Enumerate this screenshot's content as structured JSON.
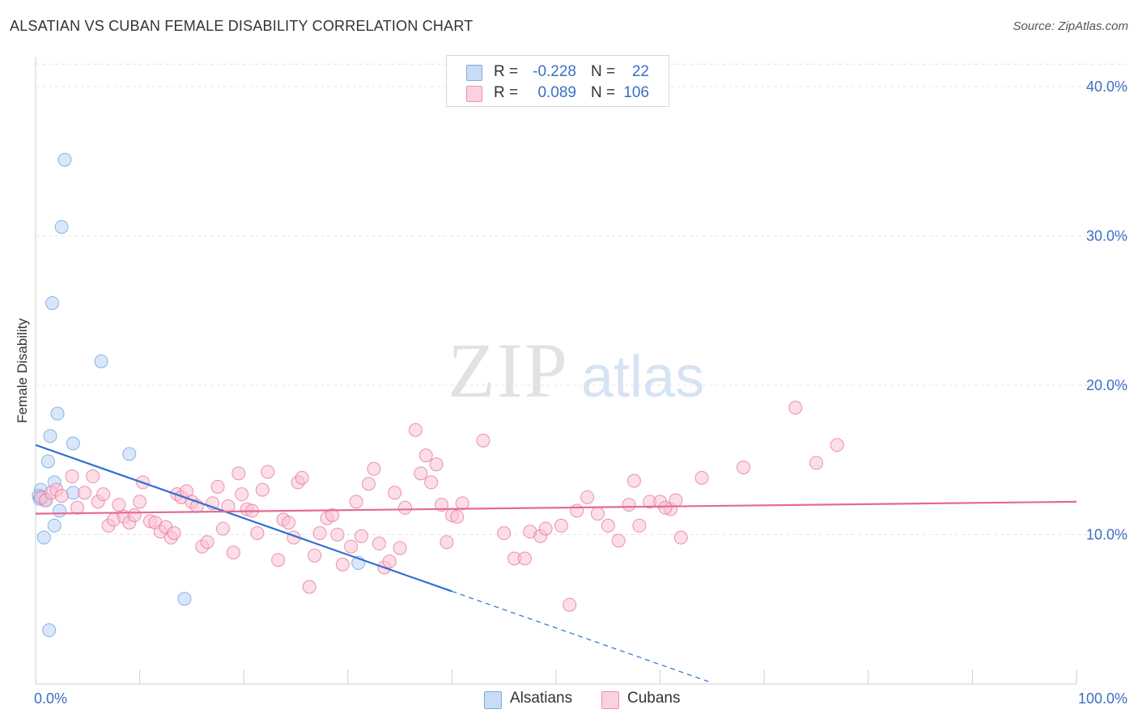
{
  "header": {
    "title": "ALSATIAN VS CUBAN FEMALE DISABILITY CORRELATION CHART",
    "source": "Source: ZipAtlas.com"
  },
  "watermark": {
    "zip": "ZIP",
    "atlas": "atlas"
  },
  "legend": {
    "rows": [
      {
        "r_label": "R =",
        "r_value": "-0.228",
        "n_label": "N =",
        "n_value": "22",
        "color": "#9fc3f0"
      },
      {
        "r_label": "R =",
        "r_value": "0.089",
        "n_label": "N =",
        "n_value": "106",
        "color": "#f5b6c9"
      }
    ]
  },
  "bottom_legend": [
    {
      "label": "Alsatians",
      "color": "#9fc3f0"
    },
    {
      "label": "Cubans",
      "color": "#f5b6c9"
    }
  ],
  "chart_data": {
    "type": "scatter",
    "title": "ALSATIAN VS CUBAN FEMALE DISABILITY CORRELATION CHART",
    "xlabel": "",
    "ylabel": "Female Disability",
    "xlim": [
      0,
      100
    ],
    "ylim": [
      0,
      42
    ],
    "x_tick_labels": [
      "0.0%",
      "100.0%"
    ],
    "y_ticks": [
      10,
      20,
      30,
      40
    ],
    "y_tick_labels": [
      "10.0%",
      "20.0%",
      "30.0%",
      "40.0%"
    ],
    "grid": true,
    "series": [
      {
        "name": "Alsatians",
        "color": "#6fa3e6",
        "fill": "#b9d3f4",
        "trend": {
          "x0": 0,
          "y0": 16.0,
          "x1": 40,
          "y1": 6.2,
          "dashed_to_x": 65
        },
        "points": [
          [
            2.8,
            35.1
          ],
          [
            2.5,
            30.6
          ],
          [
            1.6,
            25.5
          ],
          [
            6.3,
            21.6
          ],
          [
            2.1,
            18.1
          ],
          [
            1.4,
            16.6
          ],
          [
            3.6,
            16.1
          ],
          [
            9.0,
            15.4
          ],
          [
            1.2,
            14.9
          ],
          [
            1.8,
            13.5
          ],
          [
            0.5,
            13.0
          ],
          [
            0.3,
            12.6
          ],
          [
            0.7,
            12.5
          ],
          [
            3.6,
            12.8
          ],
          [
            0.9,
            12.3
          ],
          [
            2.3,
            11.6
          ],
          [
            1.8,
            10.6
          ],
          [
            0.8,
            9.8
          ],
          [
            31.0,
            8.1
          ],
          [
            14.3,
            5.7
          ],
          [
            1.3,
            3.6
          ],
          [
            0.4,
            12.4
          ]
        ]
      },
      {
        "name": "Cubans",
        "color": "#e8779c",
        "fill": "#f7c3d3",
        "trend": {
          "x0": 0,
          "y0": 11.4,
          "x1": 100,
          "y1": 12.2
        },
        "points": [
          [
            0.5,
            12.5
          ],
          [
            1.0,
            12.3
          ],
          [
            1.5,
            12.8
          ],
          [
            2.0,
            13.0
          ],
          [
            2.5,
            12.6
          ],
          [
            3.5,
            13.9
          ],
          [
            4.0,
            11.8
          ],
          [
            4.7,
            12.8
          ],
          [
            5.5,
            13.9
          ],
          [
            6.0,
            12.2
          ],
          [
            6.5,
            12.7
          ],
          [
            7.0,
            10.6
          ],
          [
            7.5,
            11.0
          ],
          [
            8.0,
            12.0
          ],
          [
            8.5,
            11.2
          ],
          [
            9.0,
            10.8
          ],
          [
            9.5,
            11.3
          ],
          [
            10.0,
            12.2
          ],
          [
            10.3,
            13.5
          ],
          [
            11.0,
            10.9
          ],
          [
            11.5,
            10.8
          ],
          [
            12.0,
            10.2
          ],
          [
            12.5,
            10.5
          ],
          [
            13.0,
            9.8
          ],
          [
            13.3,
            10.1
          ],
          [
            13.6,
            12.7
          ],
          [
            14.0,
            12.5
          ],
          [
            14.5,
            12.9
          ],
          [
            15.0,
            12.2
          ],
          [
            15.5,
            11.9
          ],
          [
            16.0,
            9.2
          ],
          [
            16.5,
            9.5
          ],
          [
            17.0,
            12.1
          ],
          [
            17.5,
            13.2
          ],
          [
            18.0,
            10.4
          ],
          [
            18.5,
            11.9
          ],
          [
            19.0,
            8.8
          ],
          [
            19.5,
            14.1
          ],
          [
            19.8,
            12.7
          ],
          [
            20.3,
            11.7
          ],
          [
            20.8,
            11.6
          ],
          [
            21.3,
            10.1
          ],
          [
            21.8,
            13.0
          ],
          [
            22.3,
            14.2
          ],
          [
            23.3,
            8.3
          ],
          [
            23.8,
            11.0
          ],
          [
            24.3,
            10.8
          ],
          [
            24.8,
            9.8
          ],
          [
            25.2,
            13.5
          ],
          [
            25.6,
            13.8
          ],
          [
            26.3,
            6.5
          ],
          [
            26.8,
            8.6
          ],
          [
            27.3,
            10.1
          ],
          [
            28.0,
            11.1
          ],
          [
            28.5,
            11.3
          ],
          [
            29.0,
            10.0
          ],
          [
            29.5,
            8.0
          ],
          [
            30.3,
            9.2
          ],
          [
            30.8,
            12.2
          ],
          [
            31.3,
            9.9
          ],
          [
            32.0,
            13.4
          ],
          [
            32.5,
            14.4
          ],
          [
            33.0,
            9.4
          ],
          [
            33.5,
            7.8
          ],
          [
            34.0,
            8.2
          ],
          [
            34.5,
            12.8
          ],
          [
            35.0,
            9.1
          ],
          [
            35.5,
            11.8
          ],
          [
            36.5,
            17.0
          ],
          [
            37.0,
            14.1
          ],
          [
            37.5,
            15.3
          ],
          [
            38.0,
            13.5
          ],
          [
            38.5,
            14.7
          ],
          [
            39.0,
            12.0
          ],
          [
            39.5,
            9.5
          ],
          [
            40.0,
            11.3
          ],
          [
            40.5,
            11.2
          ],
          [
            41.0,
            12.1
          ],
          [
            43.0,
            16.3
          ],
          [
            45.0,
            10.1
          ],
          [
            46.0,
            8.4
          ],
          [
            47.0,
            8.4
          ],
          [
            47.5,
            10.2
          ],
          [
            48.5,
            9.9
          ],
          [
            49.0,
            10.4
          ],
          [
            50.5,
            10.6
          ],
          [
            51.3,
            5.3
          ],
          [
            52.0,
            11.6
          ],
          [
            53.0,
            12.5
          ],
          [
            54.0,
            11.4
          ],
          [
            55.0,
            10.6
          ],
          [
            56.0,
            9.6
          ],
          [
            57.0,
            12.0
          ],
          [
            57.5,
            13.6
          ],
          [
            58.0,
            10.6
          ],
          [
            59.0,
            12.2
          ],
          [
            60.0,
            12.2
          ],
          [
            61.0,
            11.7
          ],
          [
            62.0,
            9.8
          ],
          [
            64.0,
            13.8
          ],
          [
            68.0,
            14.5
          ],
          [
            73.0,
            18.5
          ],
          [
            75.0,
            14.8
          ],
          [
            77.0,
            16.0
          ],
          [
            60.5,
            11.8
          ],
          [
            61.5,
            12.3
          ]
        ]
      }
    ]
  }
}
